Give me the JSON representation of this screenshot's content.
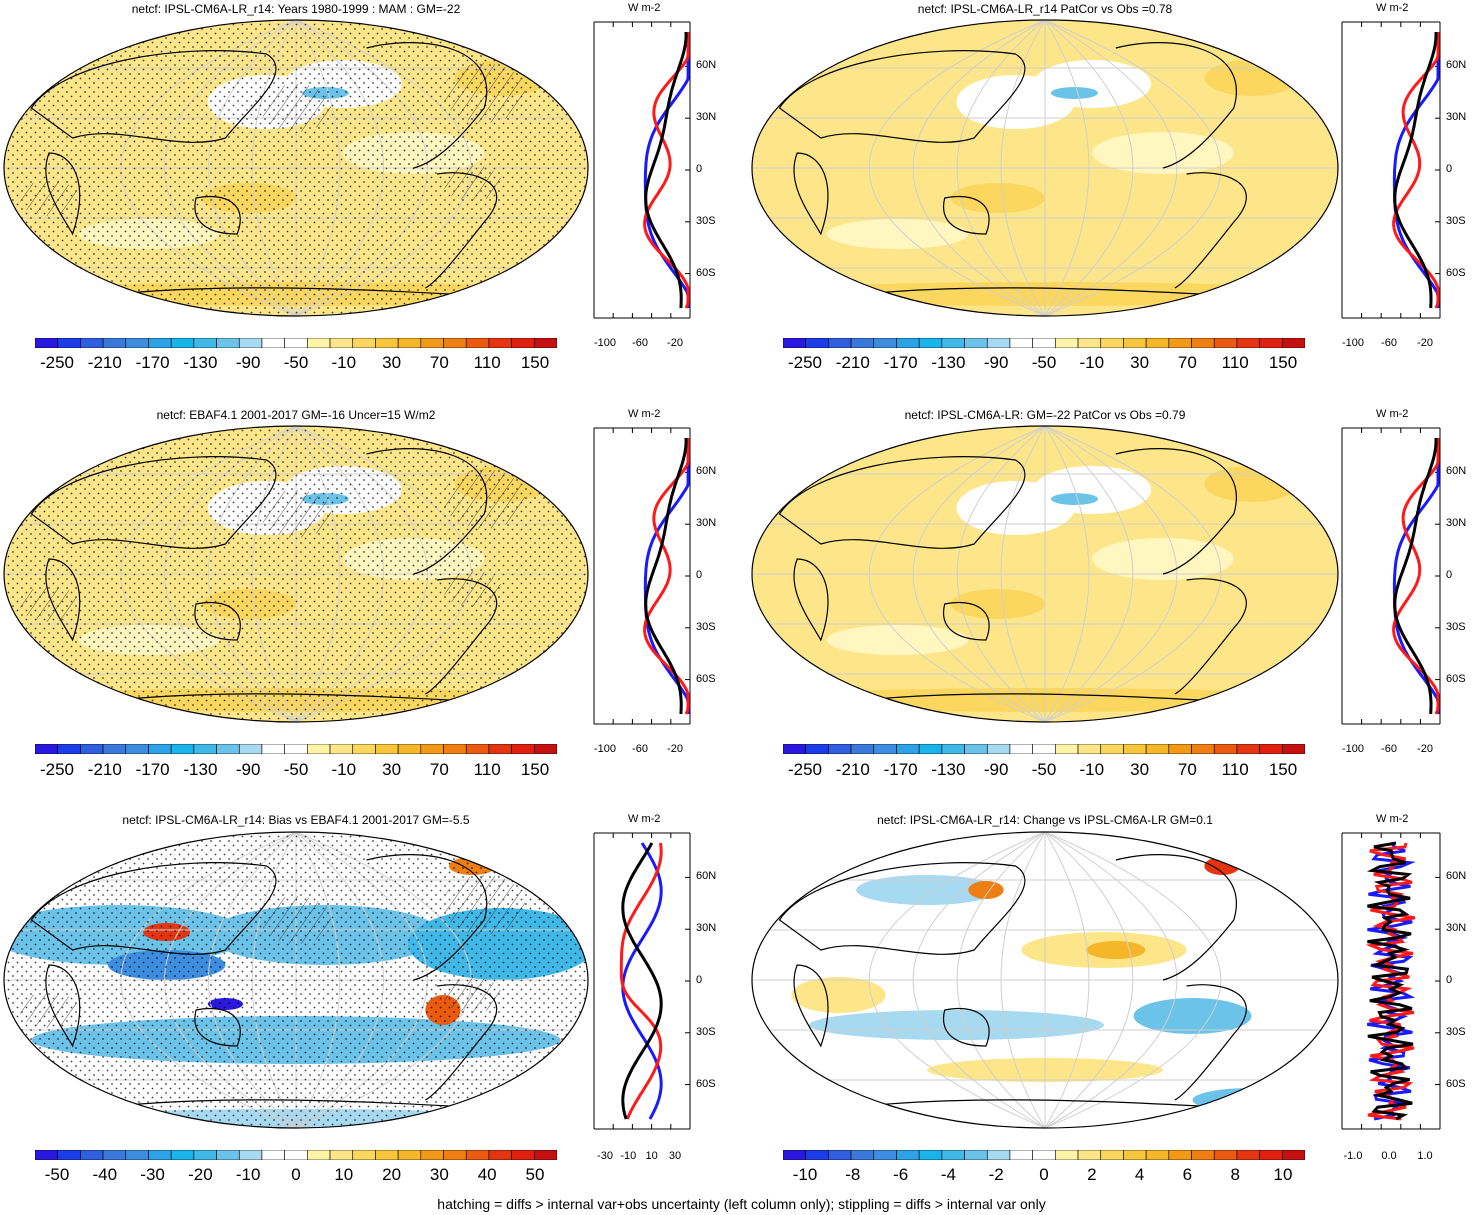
{
  "panels": [
    {
      "title": "netcf: IPSL-CM6A-LR_r14: Years 1980-1999 : MAM : GM=-22",
      "style": "mean",
      "hatch": true,
      "stipple": true,
      "cbar_labels": [
        "-250",
        "-210",
        "-170",
        "-130",
        "-90",
        "-50",
        "-10",
        "30",
        "70",
        "110",
        "150"
      ],
      "profile_xticks": [
        "-100",
        "-60",
        "-20"
      ],
      "profile_unit": "W m-2"
    },
    {
      "title": "netcf: IPSL-CM6A-LR_r14 PatCor vs Obs =0.78",
      "style": "mean",
      "hatch": false,
      "stipple": false,
      "cbar_labels": [
        "-250",
        "-210",
        "-170",
        "-130",
        "-90",
        "-50",
        "-10",
        "30",
        "70",
        "110",
        "150"
      ],
      "profile_xticks": [
        "-100",
        "-60",
        "-20"
      ],
      "profile_unit": "W m-2"
    },
    {
      "title": "netcf: EBAF4.1 2001-2017 GM=-16 Uncer=15 W/m2",
      "style": "mean",
      "hatch": true,
      "stipple": true,
      "cbar_labels": [
        "-250",
        "-210",
        "-170",
        "-130",
        "-90",
        "-50",
        "-10",
        "30",
        "70",
        "110",
        "150"
      ],
      "profile_xticks": [
        "-100",
        "-60",
        "-20"
      ],
      "profile_unit": "W m-2"
    },
    {
      "title": "netcf: IPSL-CM6A-LR: GM=-22 PatCor vs Obs =0.79",
      "style": "mean",
      "hatch": false,
      "stipple": false,
      "cbar_labels": [
        "-250",
        "-210",
        "-170",
        "-130",
        "-90",
        "-50",
        "-10",
        "30",
        "70",
        "110",
        "150"
      ],
      "profile_xticks": [
        "-100",
        "-60",
        "-20"
      ],
      "profile_unit": "W m-2"
    },
    {
      "title": "netcf: IPSL-CM6A-LR_r14: Bias vs EBAF4.1 2001-2017 GM=-5.5",
      "style": "bias",
      "hatch": true,
      "stipple": true,
      "cbar_labels": [
        "-50",
        "-40",
        "-30",
        "-20",
        "-10",
        "0",
        "10",
        "20",
        "30",
        "40",
        "50"
      ],
      "profile_xticks": [
        "-30",
        "-10",
        "10",
        "30"
      ],
      "profile_unit": "W m-2"
    },
    {
      "title": "netcf: IPSL-CM6A-LR_r14: Change vs IPSL-CM6A-LR GM=0.1",
      "style": "change",
      "hatch": false,
      "stipple": false,
      "cbar_labels": [
        "-10",
        "-8",
        "-6",
        "-4",
        "-2",
        "0",
        "2",
        "4",
        "6",
        "8",
        "10"
      ],
      "profile_xticks": [
        "-1.0",
        "0.0",
        "1.0"
      ],
      "profile_unit": "W m-2"
    }
  ],
  "lat_labels": [
    "60N",
    "30N",
    "0",
    "30S",
    "60S"
  ],
  "colorbar_colors": [
    "#2a17e0",
    "#1b3ce6",
    "#2f5fde",
    "#3a78da",
    "#3d8ee0",
    "#2ca3e6",
    "#18b4ea",
    "#40b9e8",
    "#6cc3ea",
    "#a7d9f0",
    "#ffffff",
    "#ffffff",
    "#fff3a8",
    "#fde68a",
    "#fbd760",
    "#f7c63d",
    "#f5b62a",
    "#f29a17",
    "#ef7f12",
    "#ea5a0f",
    "#e43510",
    "#df1f10",
    "#c4110f"
  ],
  "footer": "hatching = diffs > internal var+obs uncertainty (left column only); stippling = diffs > internal var only"
}
